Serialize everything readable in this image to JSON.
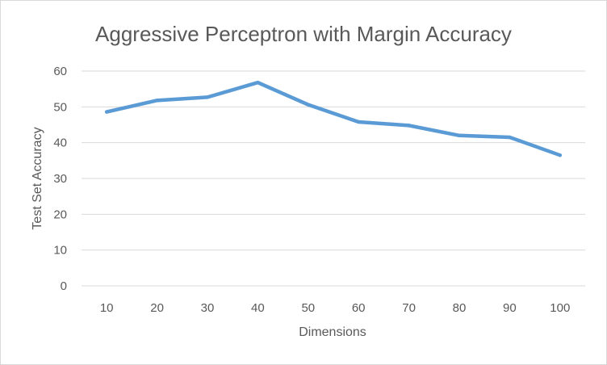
{
  "chart_data": {
    "type": "line",
    "title": "Aggressive Perceptron with Margin Accuracy",
    "xlabel": "Dimensions",
    "ylabel": "Test Set Accuracy",
    "categories": [
      "10",
      "20",
      "30",
      "40",
      "50",
      "60",
      "70",
      "80",
      "90",
      "100"
    ],
    "series": [
      {
        "values": [
          48.6,
          51.8,
          52.7,
          56.8,
          50.6,
          45.8,
          44.8,
          42.0,
          41.5,
          36.5
        ]
      }
    ],
    "ylim": [
      0,
      60
    ],
    "yticks": [
      "0",
      "10",
      "20",
      "30",
      "40",
      "50",
      "60"
    ],
    "grid": true,
    "legend": "none",
    "colors": {
      "series": "#5b9bd5",
      "grid": "#d9d9d9",
      "text": "#595959"
    }
  }
}
